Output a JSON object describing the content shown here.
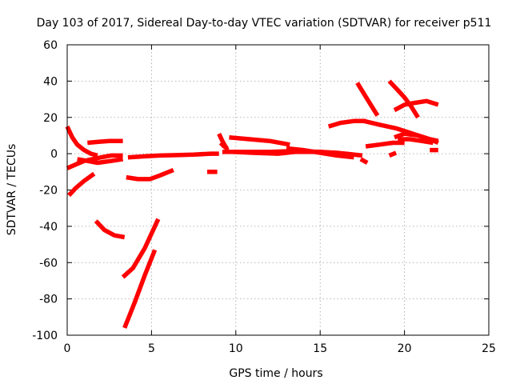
{
  "chart_data": {
    "type": "scatter",
    "title": "Day 103 of 2017, Sidereal Day-to-day VTEC variation (SDTVAR) for receiver p511",
    "xlabel": "GPS time / hours",
    "ylabel": "SDTVAR / TECUs",
    "xlim": [
      0,
      25
    ],
    "ylim": [
      -100,
      60
    ],
    "xticks": [
      0,
      5,
      10,
      15,
      20,
      25
    ],
    "yticks": [
      -100,
      -80,
      -60,
      -40,
      -20,
      0,
      20,
      40,
      60
    ],
    "grid": true,
    "marker": "plus",
    "color": "#ff0000",
    "segments": [
      {
        "x": [
          0.0,
          0.3,
          0.6,
          1.0,
          1.4,
          1.8
        ],
        "y": [
          15,
          9,
          5,
          2,
          0,
          -1
        ]
      },
      {
        "x": [
          0.0,
          0.5,
          1.0,
          1.5,
          2.0,
          2.6,
          3.3
        ],
        "y": [
          -8,
          -6,
          -4,
          -3,
          -2,
          -1,
          -1
        ]
      },
      {
        "x": [
          0.1,
          0.5,
          1.0,
          1.6
        ],
        "y": [
          -23,
          -19,
          -15,
          -11
        ]
      },
      {
        "x": [
          0.6,
          1.2,
          1.8,
          2.6,
          3.3
        ],
        "y": [
          -3,
          -4,
          -5,
          -4,
          -3
        ]
      },
      {
        "x": [
          1.2,
          1.8,
          2.5,
          3.3
        ],
        "y": [
          6,
          6.5,
          7,
          7
        ]
      },
      {
        "x": [
          1.7,
          2.2,
          2.8,
          3.4
        ],
        "y": [
          -37,
          -42,
          -45,
          -46
        ]
      },
      {
        "x": [
          3.3,
          3.9,
          4.6,
          5.4
        ],
        "y": [
          -68,
          -63,
          -52,
          -36
        ]
      },
      {
        "x": [
          3.4,
          4.0,
          4.6,
          5.2
        ],
        "y": [
          -96,
          -82,
          -67,
          -53
        ]
      },
      {
        "x": [
          3.5,
          4.2,
          4.9,
          5.5,
          6.3
        ],
        "y": [
          -13,
          -14,
          -14,
          -12,
          -9
        ]
      },
      {
        "x": [
          3.6,
          4.5,
          5.5,
          6.5,
          7.5,
          8.5,
          9.0
        ],
        "y": [
          -2,
          -1.5,
          -1,
          -0.8,
          -0.5,
          0,
          0
        ]
      },
      {
        "x": [
          8.3,
          8.9
        ],
        "y": [
          -10,
          -10
        ]
      },
      {
        "x": [
          9.0,
          9.2,
          9.5
        ],
        "y": [
          11,
          7,
          2
        ]
      },
      {
        "x": [
          9.1,
          9.3,
          9.5
        ],
        "y": [
          6,
          4,
          3
        ]
      },
      {
        "x": [
          9.2,
          10.5,
          12.0,
          13.5,
          15.0,
          16.5,
          17.5
        ],
        "y": [
          1,
          1,
          1,
          1.5,
          1,
          0,
          -1
        ]
      },
      {
        "x": [
          9.6,
          10.8,
          12.0,
          13.2
        ],
        "y": [
          9,
          8,
          7,
          5
        ]
      },
      {
        "x": [
          9.9,
          11.0,
          12.5,
          13.5,
          15.0,
          16.0,
          17.0
        ],
        "y": [
          1,
          0.5,
          0,
          1,
          1,
          0.5,
          -0.5
        ]
      },
      {
        "x": [
          13.0,
          14.0,
          15.0,
          16.0,
          17.0
        ],
        "y": [
          3,
          2,
          0.5,
          -1,
          -2
        ]
      },
      {
        "x": [
          15.5,
          16.2,
          17.0,
          17.7
        ],
        "y": [
          15,
          17,
          18,
          18
        ]
      },
      {
        "x": [
          17.2,
          17.6,
          18.0,
          18.4
        ],
        "y": [
          39,
          33,
          27,
          21
        ]
      },
      {
        "x": [
          17.6,
          18.5,
          19.5,
          20.5,
          21.5,
          22.0
        ],
        "y": [
          18,
          16,
          14,
          11,
          8,
          7
        ]
      },
      {
        "x": [
          17.7,
          18.5,
          19.3,
          20.0
        ],
        "y": [
          4,
          5,
          6,
          6
        ]
      },
      {
        "x": [
          17.4,
          17.8
        ],
        "y": [
          -3,
          -5
        ]
      },
      {
        "x": [
          19.1,
          19.5,
          20.0,
          20.4,
          20.8
        ],
        "y": [
          40,
          36,
          31,
          26,
          20
        ]
      },
      {
        "x": [
          19.4,
          20.0,
          20.6,
          21.3,
          22.0
        ],
        "y": [
          24,
          27,
          28,
          29,
          27
        ]
      },
      {
        "x": [
          19.4,
          20.0,
          20.8,
          21.5,
          22.0
        ],
        "y": [
          9,
          11,
          10,
          8,
          6
        ]
      },
      {
        "x": [
          19.6,
          20.3,
          21.0,
          21.7
        ],
        "y": [
          8,
          8,
          7,
          6
        ]
      },
      {
        "x": [
          19.1,
          19.5
        ],
        "y": [
          -1,
          0.5
        ]
      },
      {
        "x": [
          21.5,
          22.0
        ],
        "y": [
          2,
          2
        ]
      }
    ]
  }
}
